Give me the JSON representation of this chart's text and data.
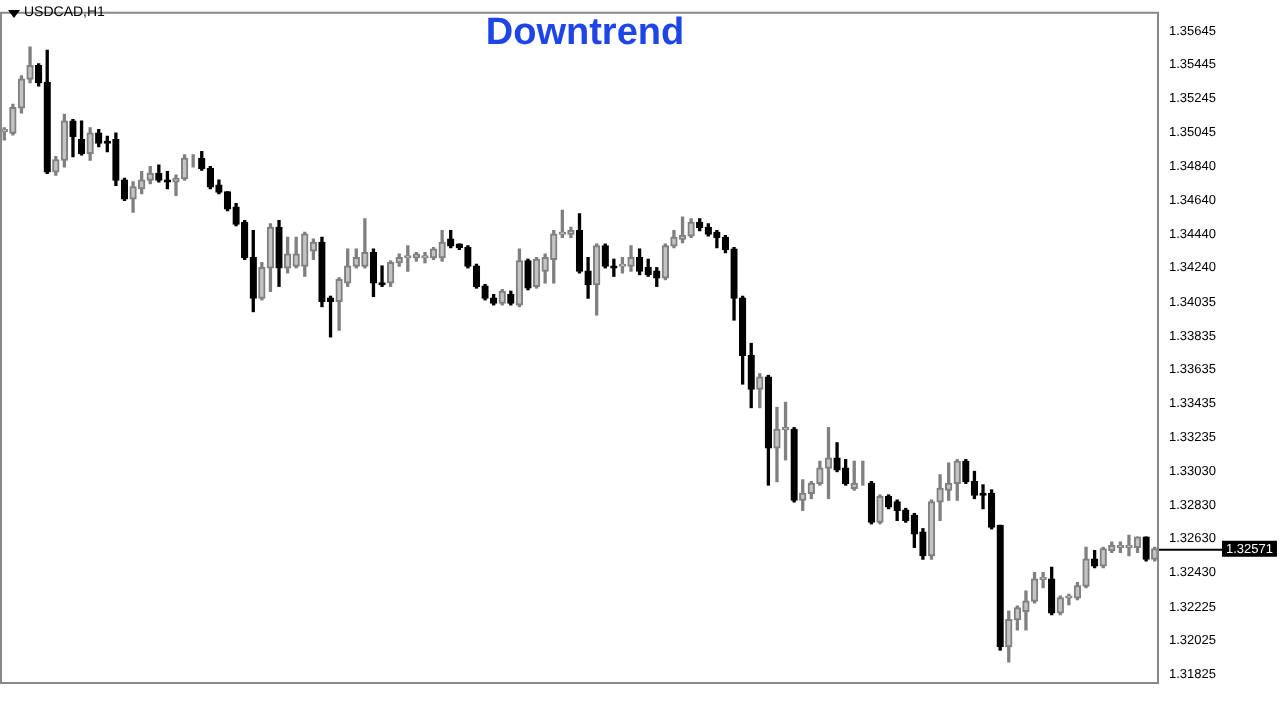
{
  "chart_data": {
    "type": "candlestick",
    "title": "Downtrend",
    "annotations": [
      "USDCAD,H1"
    ],
    "ref_lines": [
      {
        "axis": "y",
        "value": 1.32571,
        "label": "1.32571"
      }
    ],
    "categories": [
      null,
      null,
      null,
      null,
      null,
      null,
      null,
      null,
      null,
      null,
      null,
      null,
      null,
      null,
      null,
      null,
      null,
      null,
      null,
      null,
      null,
      null,
      null,
      null,
      null,
      null,
      null,
      null,
      null,
      null,
      null,
      null,
      null,
      null,
      null,
      null,
      null,
      null,
      null,
      null,
      null,
      null,
      null,
      null,
      null,
      null,
      null,
      null,
      null,
      null,
      null,
      null,
      null,
      null,
      null,
      null,
      null,
      null,
      null,
      null,
      null,
      null,
      null,
      null,
      null,
      null,
      null,
      null,
      null,
      null,
      null,
      null,
      null,
      null,
      null,
      null,
      null,
      null,
      null,
      null,
      null,
      null,
      null,
      null,
      null,
      null,
      null,
      null,
      null,
      null,
      null,
      null,
      null,
      null,
      null,
      null,
      null,
      null,
      null,
      null,
      null,
      null,
      null,
      null,
      null,
      null,
      null,
      null,
      null,
      null,
      null,
      null,
      null,
      null,
      null,
      null,
      null,
      null,
      null,
      null,
      null,
      null,
      null,
      null,
      null,
      null,
      null,
      null,
      null,
      null,
      null,
      null,
      null,
      null,
      null
    ],
    "ohlc": [
      [
        1.3505,
        1.3507,
        1.35,
        1.3506
      ],
      [
        1.3504,
        1.3521,
        1.3503,
        1.3519
      ],
      [
        1.3519,
        1.3538,
        1.3516,
        1.3536
      ],
      [
        1.3536,
        1.3555,
        1.3534,
        1.3544
      ],
      [
        1.3544,
        1.3545,
        1.3532,
        1.3534
      ],
      [
        1.3534,
        1.3553,
        1.348,
        1.3481
      ],
      [
        1.3481,
        1.349,
        1.3479,
        1.3488
      ],
      [
        1.3488,
        1.3515,
        1.3484,
        1.3511
      ],
      [
        1.3511,
        1.3512,
        1.349,
        1.3502
      ],
      [
        1.35,
        1.3511,
        1.3491,
        1.3492
      ],
      [
        1.3492,
        1.3507,
        1.3488,
        1.3504
      ],
      [
        1.3504,
        1.3506,
        1.3496,
        1.3498
      ],
      [
        1.3499,
        1.3502,
        1.3493,
        1.3498
      ],
      [
        1.35,
        1.3504,
        1.3473,
        1.3476
      ],
      [
        1.3476,
        1.3477,
        1.3464,
        1.3465
      ],
      [
        1.3465,
        1.3475,
        1.3457,
        1.3472
      ],
      [
        1.3471,
        1.3481,
        1.3468,
        1.3476
      ],
      [
        1.3476,
        1.3484,
        1.3474,
        1.348
      ],
      [
        1.348,
        1.3485,
        1.3475,
        1.3476
      ],
      [
        1.3476,
        1.3481,
        1.3471,
        1.3475
      ],
      [
        1.3475,
        1.3479,
        1.3467,
        1.3477
      ],
      [
        1.3477,
        1.3491,
        1.3476,
        1.3489
      ],
      [
        1.3488,
        1.3491,
        1.3484,
        1.3488
      ],
      [
        1.3489,
        1.3493,
        1.3482,
        1.3483
      ],
      [
        1.3483,
        1.3484,
        1.3471,
        1.3472
      ],
      [
        1.3473,
        1.3476,
        1.3468,
        1.3469
      ],
      [
        1.3469,
        1.3469,
        1.3458,
        1.3459
      ],
      [
        1.346,
        1.3462,
        1.3449,
        1.345
      ],
      [
        1.3451,
        1.3452,
        1.3429,
        1.343
      ],
      [
        1.343,
        1.3446,
        1.3398,
        1.3406
      ],
      [
        1.3406,
        1.3427,
        1.3405,
        1.3424
      ],
      [
        1.3424,
        1.345,
        1.341,
        1.3448
      ],
      [
        1.3448,
        1.3452,
        1.3413,
        1.3424
      ],
      [
        1.3424,
        1.3442,
        1.3421,
        1.3432
      ],
      [
        1.3425,
        1.3442,
        1.3424,
        1.3432
      ],
      [
        1.3425,
        1.3445,
        1.3419,
        1.3444
      ],
      [
        1.3434,
        1.3441,
        1.3429,
        1.3439
      ],
      [
        1.3439,
        1.3442,
        1.3401,
        1.3404
      ],
      [
        1.3406,
        1.3407,
        1.3383,
        1.3404
      ],
      [
        1.3404,
        1.3418,
        1.3387,
        1.3417
      ],
      [
        1.3415,
        1.3435,
        1.3413,
        1.3425
      ],
      [
        1.3425,
        1.3435,
        1.3424,
        1.343
      ],
      [
        1.3425,
        1.3453,
        1.3424,
        1.3433
      ],
      [
        1.3433,
        1.3435,
        1.3407,
        1.3415
      ],
      [
        1.3415,
        1.3425,
        1.3413,
        1.3414
      ],
      [
        1.3415,
        1.3428,
        1.3413,
        1.3427
      ],
      [
        1.3427,
        1.3432,
        1.3425,
        1.343
      ],
      [
        1.343,
        1.3437,
        1.3422,
        1.3431
      ],
      [
        1.343,
        1.3433,
        1.3428,
        1.3432
      ],
      [
        1.343,
        1.3433,
        1.3427,
        1.3431
      ],
      [
        1.343,
        1.3436,
        1.3429,
        1.3435
      ],
      [
        1.343,
        1.3446,
        1.3428,
        1.3439
      ],
      [
        1.3441,
        1.3446,
        1.3436,
        1.3437
      ],
      [
        1.3438,
        1.3438,
        1.3435,
        1.3436
      ],
      [
        1.3436,
        1.3437,
        1.3424,
        1.3425
      ],
      [
        1.3425,
        1.3426,
        1.3412,
        1.3413
      ],
      [
        1.3413,
        1.3414,
        1.3405,
        1.3406
      ],
      [
        1.3406,
        1.3408,
        1.3402,
        1.3403
      ],
      [
        1.3403,
        1.3411,
        1.3402,
        1.341
      ],
      [
        1.3408,
        1.341,
        1.3402,
        1.3403
      ],
      [
        1.3402,
        1.3435,
        1.3401,
        1.3428
      ],
      [
        1.3428,
        1.3429,
        1.3411,
        1.3412
      ],
      [
        1.3413,
        1.343,
        1.3412,
        1.3429
      ],
      [
        1.3422,
        1.3432,
        1.3415,
        1.343
      ],
      [
        1.3429,
        1.3446,
        1.3415,
        1.3444
      ],
      [
        1.3444,
        1.3458,
        1.3442,
        1.3445
      ],
      [
        1.3444,
        1.3448,
        1.3442,
        1.3446
      ],
      [
        1.3446,
        1.3456,
        1.3421,
        1.3422
      ],
      [
        1.3422,
        1.343,
        1.3406,
        1.3414
      ],
      [
        1.3414,
        1.3438,
        1.3396,
        1.3437
      ],
      [
        1.3437,
        1.3438,
        1.3424,
        1.3425
      ],
      [
        1.3425,
        1.3429,
        1.3419,
        1.3424
      ],
      [
        1.3425,
        1.343,
        1.3421,
        1.3426
      ],
      [
        1.3425,
        1.3437,
        1.3422,
        1.343
      ],
      [
        1.343,
        1.3435,
        1.342,
        1.3422
      ],
      [
        1.3424,
        1.3429,
        1.3419,
        1.342
      ],
      [
        1.3422,
        1.3424,
        1.3413,
        1.3418
      ],
      [
        1.3418,
        1.3438,
        1.3417,
        1.3437
      ],
      [
        1.3437,
        1.3446,
        1.3436,
        1.3442
      ],
      [
        1.3441,
        1.3454,
        1.3439,
        1.3443
      ],
      [
        1.3443,
        1.3453,
        1.3442,
        1.3451
      ],
      [
        1.3451,
        1.3453,
        1.3446,
        1.3448
      ],
      [
        1.3448,
        1.345,
        1.3443,
        1.3444
      ],
      [
        1.3445,
        1.3446,
        1.3436,
        1.3442
      ],
      [
        1.3442,
        1.3443,
        1.3433,
        1.3435
      ],
      [
        1.3435,
        1.3436,
        1.3393,
        1.3406
      ],
      [
        1.3406,
        1.3407,
        1.3355,
        1.3372
      ],
      [
        1.3372,
        1.3379,
        1.3341,
        1.3352
      ],
      [
        1.3352,
        1.3361,
        1.3341,
        1.3359
      ],
      [
        1.3359,
        1.336,
        1.3295,
        1.3317
      ],
      [
        1.3317,
        1.3341,
        1.3297,
        1.3328
      ],
      [
        1.3328,
        1.3344,
        1.331,
        1.3329
      ],
      [
        1.3328,
        1.3329,
        1.3285,
        1.3286
      ],
      [
        1.3286,
        1.3298,
        1.328,
        1.329
      ],
      [
        1.329,
        1.3297,
        1.3287,
        1.3296
      ],
      [
        1.3296,
        1.3309,
        1.3295,
        1.3305
      ],
      [
        1.3305,
        1.3329,
        1.3287,
        1.3311
      ],
      [
        1.3311,
        1.332,
        1.3303,
        1.3304
      ],
      [
        1.3305,
        1.331,
        1.3295,
        1.3296
      ],
      [
        1.3293,
        1.3309,
        1.3292,
        1.3296
      ],
      [
        1.3296,
        1.3309,
        1.3295,
        1.3296
      ],
      [
        1.3296,
        1.3297,
        1.3272,
        1.3273
      ],
      [
        1.3273,
        1.3289,
        1.3272,
        1.3288
      ],
      [
        1.3288,
        1.3289,
        1.3281,
        1.3282
      ],
      [
        1.3285,
        1.3286,
        1.3274,
        1.328
      ],
      [
        1.328,
        1.3281,
        1.3273,
        1.3274
      ],
      [
        1.3277,
        1.3278,
        1.3258,
        1.3266
      ],
      [
        1.3267,
        1.3269,
        1.3251,
        1.3253
      ],
      [
        1.3253,
        1.3286,
        1.3251,
        1.3285
      ],
      [
        1.3285,
        1.3301,
        1.3274,
        1.3293
      ],
      [
        1.3292,
        1.3308,
        1.3286,
        1.3296
      ],
      [
        1.3296,
        1.331,
        1.3286,
        1.3309
      ],
      [
        1.3309,
        1.331,
        1.3296,
        1.3297
      ],
      [
        1.3297,
        1.3303,
        1.3287,
        1.3289
      ],
      [
        1.329,
        1.3295,
        1.3281,
        1.3289
      ],
      [
        1.329,
        1.3292,
        1.3269,
        1.327
      ],
      [
        1.3271,
        1.3271,
        1.3197,
        1.3199
      ],
      [
        1.3199,
        1.322,
        1.319,
        1.3215
      ],
      [
        1.3215,
        1.3223,
        1.3209,
        1.3222
      ],
      [
        1.322,
        1.3232,
        1.3209,
        1.3226
      ],
      [
        1.3226,
        1.3243,
        1.3225,
        1.3239
      ],
      [
        1.3239,
        1.3243,
        1.3234,
        1.324
      ],
      [
        1.3239,
        1.3246,
        1.3218,
        1.3219
      ],
      [
        1.3219,
        1.3229,
        1.3218,
        1.3228
      ],
      [
        1.3228,
        1.323,
        1.3224,
        1.3229
      ],
      [
        1.3228,
        1.3237,
        1.3227,
        1.3235
      ],
      [
        1.3235,
        1.3258,
        1.3234,
        1.3251
      ],
      [
        1.3251,
        1.3256,
        1.3246,
        1.3247
      ],
      [
        1.3247,
        1.3258,
        1.3246,
        1.3257
      ],
      [
        1.3256,
        1.3261,
        1.3255,
        1.3259
      ],
      [
        1.3258,
        1.3261,
        1.3255,
        1.3259
      ],
      [
        1.3258,
        1.3265,
        1.3253,
        1.3259
      ],
      [
        1.3258,
        1.3264,
        1.3255,
        1.3264
      ],
      [
        1.3264,
        1.3264,
        1.325,
        1.3251
      ],
      [
        1.3251,
        1.3258,
        1.325,
        1.3257
      ]
    ],
    "ylim": [
      1.3178,
      1.3576
    ],
    "yticks": [
      {
        "value": 1.35645,
        "label": "1.35645"
      },
      {
        "value": 1.35445,
        "label": "1.35445"
      },
      {
        "value": 1.35245,
        "label": "1.35245"
      },
      {
        "value": 1.35045,
        "label": "1.35045"
      },
      {
        "value": 1.3484,
        "label": "1.34840"
      },
      {
        "value": 1.3464,
        "label": "1.34640"
      },
      {
        "value": 1.3444,
        "label": "1.34440"
      },
      {
        "value": 1.3424,
        "label": "1.34240"
      },
      {
        "value": 1.34035,
        "label": "1.34035"
      },
      {
        "value": 1.33835,
        "label": "1.33835"
      },
      {
        "value": 1.33635,
        "label": "1.33635"
      },
      {
        "value": 1.33435,
        "label": "1.33435"
      },
      {
        "value": 1.33235,
        "label": "1.33235"
      },
      {
        "value": 1.3303,
        "label": "1.33030"
      },
      {
        "value": 1.3283,
        "label": "1.32830"
      },
      {
        "value": 1.3263,
        "label": "1.32630"
      },
      {
        "value": 1.3243,
        "label": "1.32430"
      },
      {
        "value": 1.32225,
        "label": "1.32225"
      },
      {
        "value": 1.32025,
        "label": "1.32025"
      },
      {
        "value": 1.31825,
        "label": "1.31825"
      }
    ],
    "tick_labels": "y",
    "legend": false
  }
}
